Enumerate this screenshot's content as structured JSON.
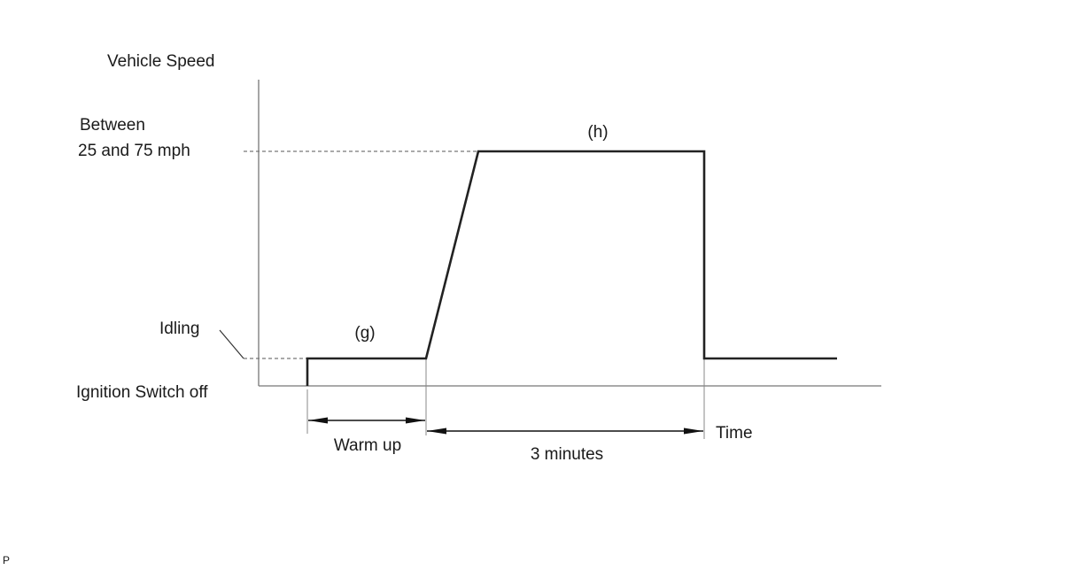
{
  "diagram": {
    "y_axis_label": "Vehicle Speed",
    "x_axis_label": "Time",
    "level_high_line1": "Between",
    "level_high_line2": "25 and 75 mph",
    "level_idle": "Idling",
    "level_off": "Ignition Switch off",
    "phase_g": "(g)",
    "phase_h": "(h)",
    "interval_warmup": "Warm up",
    "interval_drive": "3 minutes",
    "corner_mark": "P"
  }
}
